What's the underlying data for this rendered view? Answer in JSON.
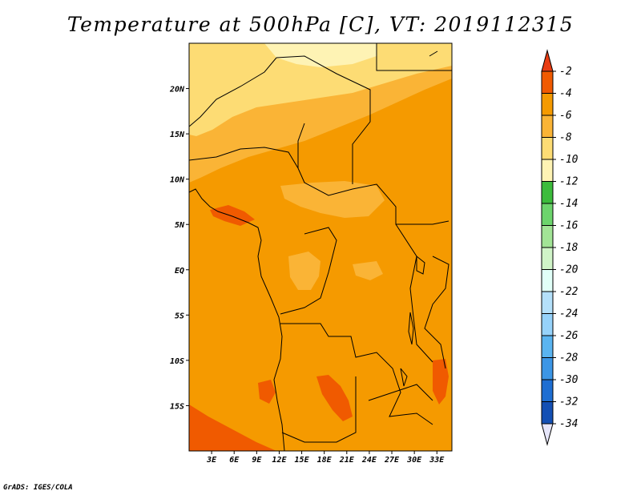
{
  "title": "Temperature at 500hPa [C], VT: 2019112315",
  "credit": "GrADS: IGES/COLA",
  "map": {
    "lon_range": [
      0,
      35
    ],
    "lat_range": [
      -20,
      25
    ],
    "lon_ticks": [
      "3E",
      "6E",
      "9E",
      "12E",
      "15E",
      "18E",
      "21E",
      "24E",
      "27E",
      "30E",
      "33E"
    ],
    "lat_ticks": [
      "20N",
      "15N",
      "10N",
      "5N",
      "EQ",
      "5S",
      "10S",
      "15S"
    ]
  },
  "colorbar": {
    "labels": [
      "-2",
      "-4",
      "-6",
      "-8",
      "-10",
      "-12",
      "-14",
      "-16",
      "-18",
      "-20",
      "-22",
      "-24",
      "-26",
      "-28",
      "-30",
      "-32",
      "-34"
    ],
    "colors": [
      "#f05a00",
      "#f59a00",
      "#fab436",
      "#fddc74",
      "#fef3b4",
      "#3cbc3c",
      "#6cd46c",
      "#a2e496",
      "#d0f4c8",
      "#e1fff8",
      "#b4e0fa",
      "#96d2fa",
      "#5ab4f0",
      "#3c96e6",
      "#1e6ed2",
      "#1450b4",
      "#0c1e78"
    ],
    "top_color": "#e83c12",
    "bottom_color": "#e6e6fa"
  }
}
